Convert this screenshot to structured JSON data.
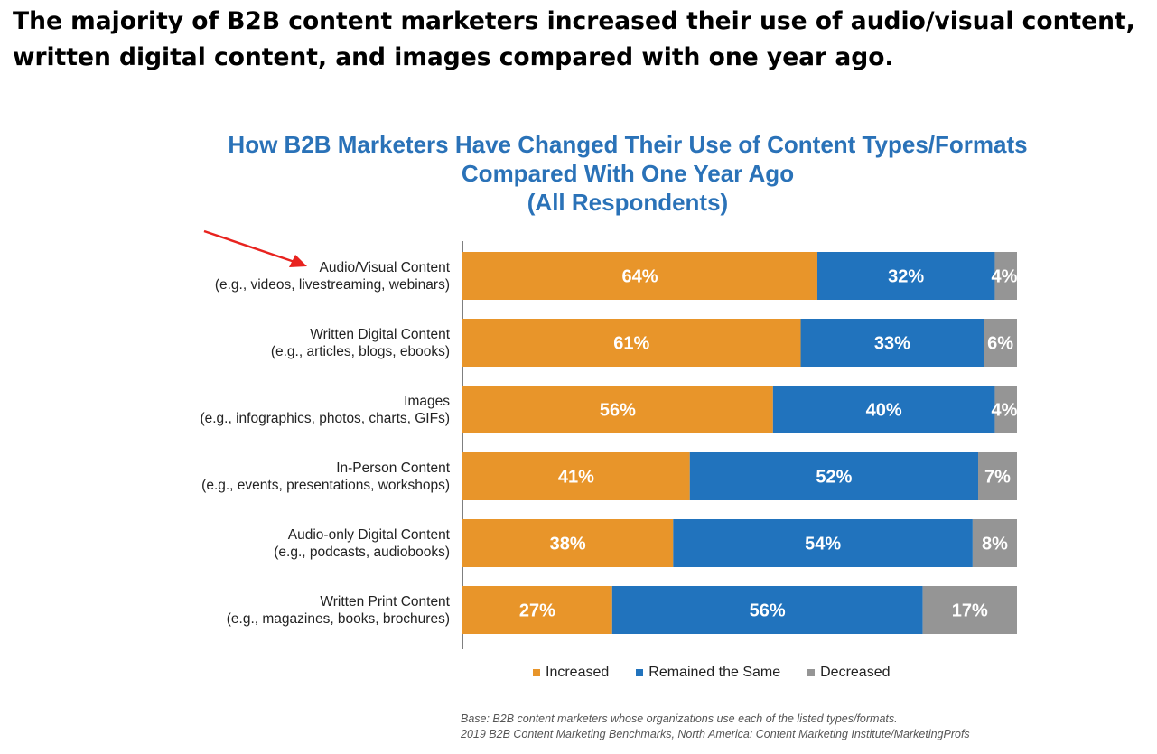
{
  "headline": "The majority of B2B content marketers increased their use of audio/visual content, written digital content, and images compared with one year ago.",
  "chart_data": {
    "type": "bar",
    "orientation": "horizontal",
    "stacked": true,
    "title_lines": [
      "How B2B Marketers Have Changed Their Use of Content Types/Formats",
      "Compared With One Year Ago",
      "(All Respondents)"
    ],
    "categories": [
      {
        "name": "Audio/Visual Content",
        "sub": "(e.g., videos, livestreaming, webinars)"
      },
      {
        "name": "Written Digital Content",
        "sub": "(e.g., articles, blogs, ebooks)"
      },
      {
        "name": "Images",
        "sub": "(e.g., infographics, photos, charts, GIFs)"
      },
      {
        "name": "In-Person Content",
        "sub": "(e.g., events, presentations, workshops)"
      },
      {
        "name": "Audio-only Digital Content",
        "sub": "(e.g., podcasts, audiobooks)"
      },
      {
        "name": "Written Print Content",
        "sub": "(e.g., magazines, books, brochures)"
      }
    ],
    "series": [
      {
        "name": "Increased",
        "color": "#e8952a",
        "values": [
          64,
          61,
          56,
          41,
          38,
          27
        ]
      },
      {
        "name": "Remained the Same",
        "color": "#2173bd",
        "values": [
          32,
          33,
          40,
          52,
          54,
          56
        ]
      },
      {
        "name": "Decreased",
        "color": "#959595",
        "values": [
          4,
          6,
          4,
          7,
          8,
          17
        ]
      }
    ],
    "value_suffix": "%",
    "xlim": [
      0,
      100
    ],
    "grid": false,
    "legend_position": "bottom",
    "annotation": {
      "type": "red-arrow",
      "target": "Audio/Visual Content",
      "color": "#e8231f"
    }
  },
  "footnote": [
    "Base: B2B content marketers whose organizations use each of the listed types/formats.",
    "2019 B2B Content Marketing Benchmarks, North America: Content Marketing Institute/MarketingProfs"
  ]
}
